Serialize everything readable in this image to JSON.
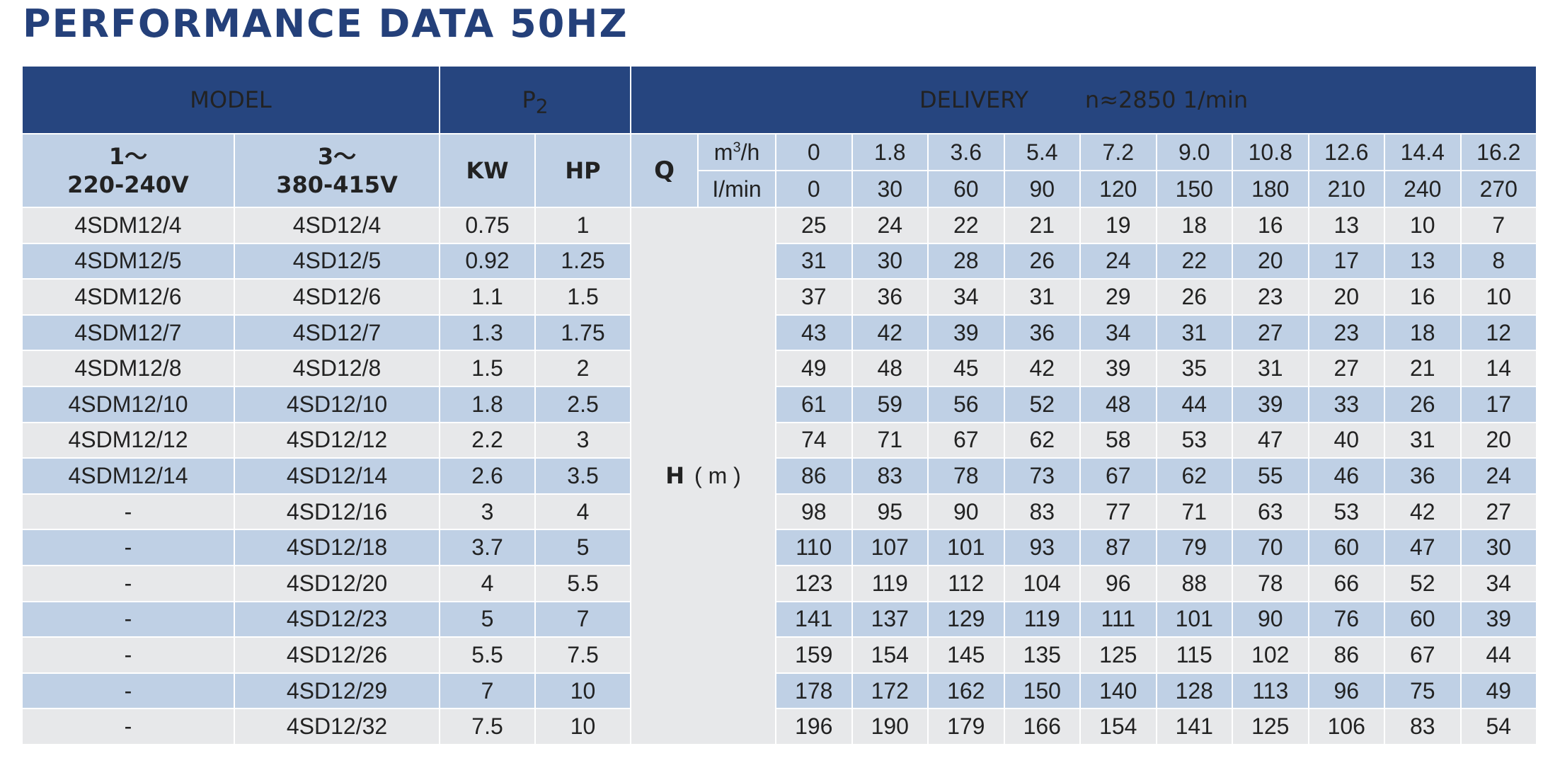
{
  "title": "PERFORMANCE DATA 50HZ",
  "header": {
    "model": "MODEL",
    "p2_main": "P",
    "p2_sub": "2",
    "delivery": "DELIVERY",
    "speed": "n≈2850 1/min"
  },
  "subheader": {
    "single_phase_line1": "1～",
    "single_phase_line2": "220-240V",
    "three_phase_line1": "3～",
    "three_phase_line2": "380-415V",
    "kw": "KW",
    "hp": "HP",
    "q_label": "Q",
    "unit_m3h_base": "m",
    "unit_m3h_sup": "3",
    "unit_m3h_tail": "/h",
    "unit_lmin": "I/min",
    "h_label": "H",
    "h_unit": "( m )"
  },
  "q_m3h": [
    "0",
    "1.8",
    "3.6",
    "5.4",
    "7.2",
    "9.0",
    "10.8",
    "12.6",
    "14.4",
    "16.2"
  ],
  "q_lmin": [
    "0",
    "30",
    "60",
    "90",
    "120",
    "150",
    "180",
    "210",
    "240",
    "270"
  ],
  "rows": [
    {
      "m1": "4SDM12/4",
      "m3": "4SD12/4",
      "kw": "0.75",
      "hp": "1",
      "h": [
        "25",
        "24",
        "22",
        "21",
        "19",
        "18",
        "16",
        "13",
        "10",
        "7"
      ]
    },
    {
      "m1": "4SDM12/5",
      "m3": "4SD12/5",
      "kw": "0.92",
      "hp": "1.25",
      "h": [
        "31",
        "30",
        "28",
        "26",
        "24",
        "22",
        "20",
        "17",
        "13",
        "8"
      ]
    },
    {
      "m1": "4SDM12/6",
      "m3": "4SD12/6",
      "kw": "1.1",
      "hp": "1.5",
      "h": [
        "37",
        "36",
        "34",
        "31",
        "29",
        "26",
        "23",
        "20",
        "16",
        "10"
      ]
    },
    {
      "m1": "4SDM12/7",
      "m3": "4SD12/7",
      "kw": "1.3",
      "hp": "1.75",
      "h": [
        "43",
        "42",
        "39",
        "36",
        "34",
        "31",
        "27",
        "23",
        "18",
        "12"
      ]
    },
    {
      "m1": "4SDM12/8",
      "m3": "4SD12/8",
      "kw": "1.5",
      "hp": "2",
      "h": [
        "49",
        "48",
        "45",
        "42",
        "39",
        "35",
        "31",
        "27",
        "21",
        "14"
      ]
    },
    {
      "m1": "4SDM12/10",
      "m3": "4SD12/10",
      "kw": "1.8",
      "hp": "2.5",
      "h": [
        "61",
        "59",
        "56",
        "52",
        "48",
        "44",
        "39",
        "33",
        "26",
        "17"
      ]
    },
    {
      "m1": "4SDM12/12",
      "m3": "4SD12/12",
      "kw": "2.2",
      "hp": "3",
      "h": [
        "74",
        "71",
        "67",
        "62",
        "58",
        "53",
        "47",
        "40",
        "31",
        "20"
      ]
    },
    {
      "m1": "4SDM12/14",
      "m3": "4SD12/14",
      "kw": "2.6",
      "hp": "3.5",
      "h": [
        "86",
        "83",
        "78",
        "73",
        "67",
        "62",
        "55",
        "46",
        "36",
        "24"
      ]
    },
    {
      "m1": "-",
      "m3": "4SD12/16",
      "kw": "3",
      "hp": "4",
      "h": [
        "98",
        "95",
        "90",
        "83",
        "77",
        "71",
        "63",
        "53",
        "42",
        "27"
      ]
    },
    {
      "m1": "-",
      "m3": "4SD12/18",
      "kw": "3.7",
      "hp": "5",
      "h": [
        "110",
        "107",
        "101",
        "93",
        "87",
        "79",
        "70",
        "60",
        "47",
        "30"
      ]
    },
    {
      "m1": "-",
      "m3": "4SD12/20",
      "kw": "4",
      "hp": "5.5",
      "h": [
        "123",
        "119",
        "112",
        "104",
        "96",
        "88",
        "78",
        "66",
        "52",
        "34"
      ]
    },
    {
      "m1": "-",
      "m3": "4SD12/23",
      "kw": "5",
      "hp": "7",
      "h": [
        "141",
        "137",
        "129",
        "119",
        "111",
        "101",
        "90",
        "76",
        "60",
        "39"
      ]
    },
    {
      "m1": "-",
      "m3": "4SD12/26",
      "kw": "5.5",
      "hp": "7.5",
      "h": [
        "159",
        "154",
        "145",
        "135",
        "125",
        "115",
        "102",
        "86",
        "67",
        "44"
      ]
    },
    {
      "m1": "-",
      "m3": "4SD12/29",
      "kw": "7",
      "hp": "10",
      "h": [
        "178",
        "172",
        "162",
        "150",
        "140",
        "128",
        "113",
        "96",
        "75",
        "49"
      ]
    },
    {
      "m1": "-",
      "m3": "4SD12/32",
      "kw": "7.5",
      "hp": "10",
      "h": [
        "196",
        "190",
        "179",
        "166",
        "154",
        "141",
        "125",
        "106",
        "83",
        "54"
      ]
    }
  ]
}
